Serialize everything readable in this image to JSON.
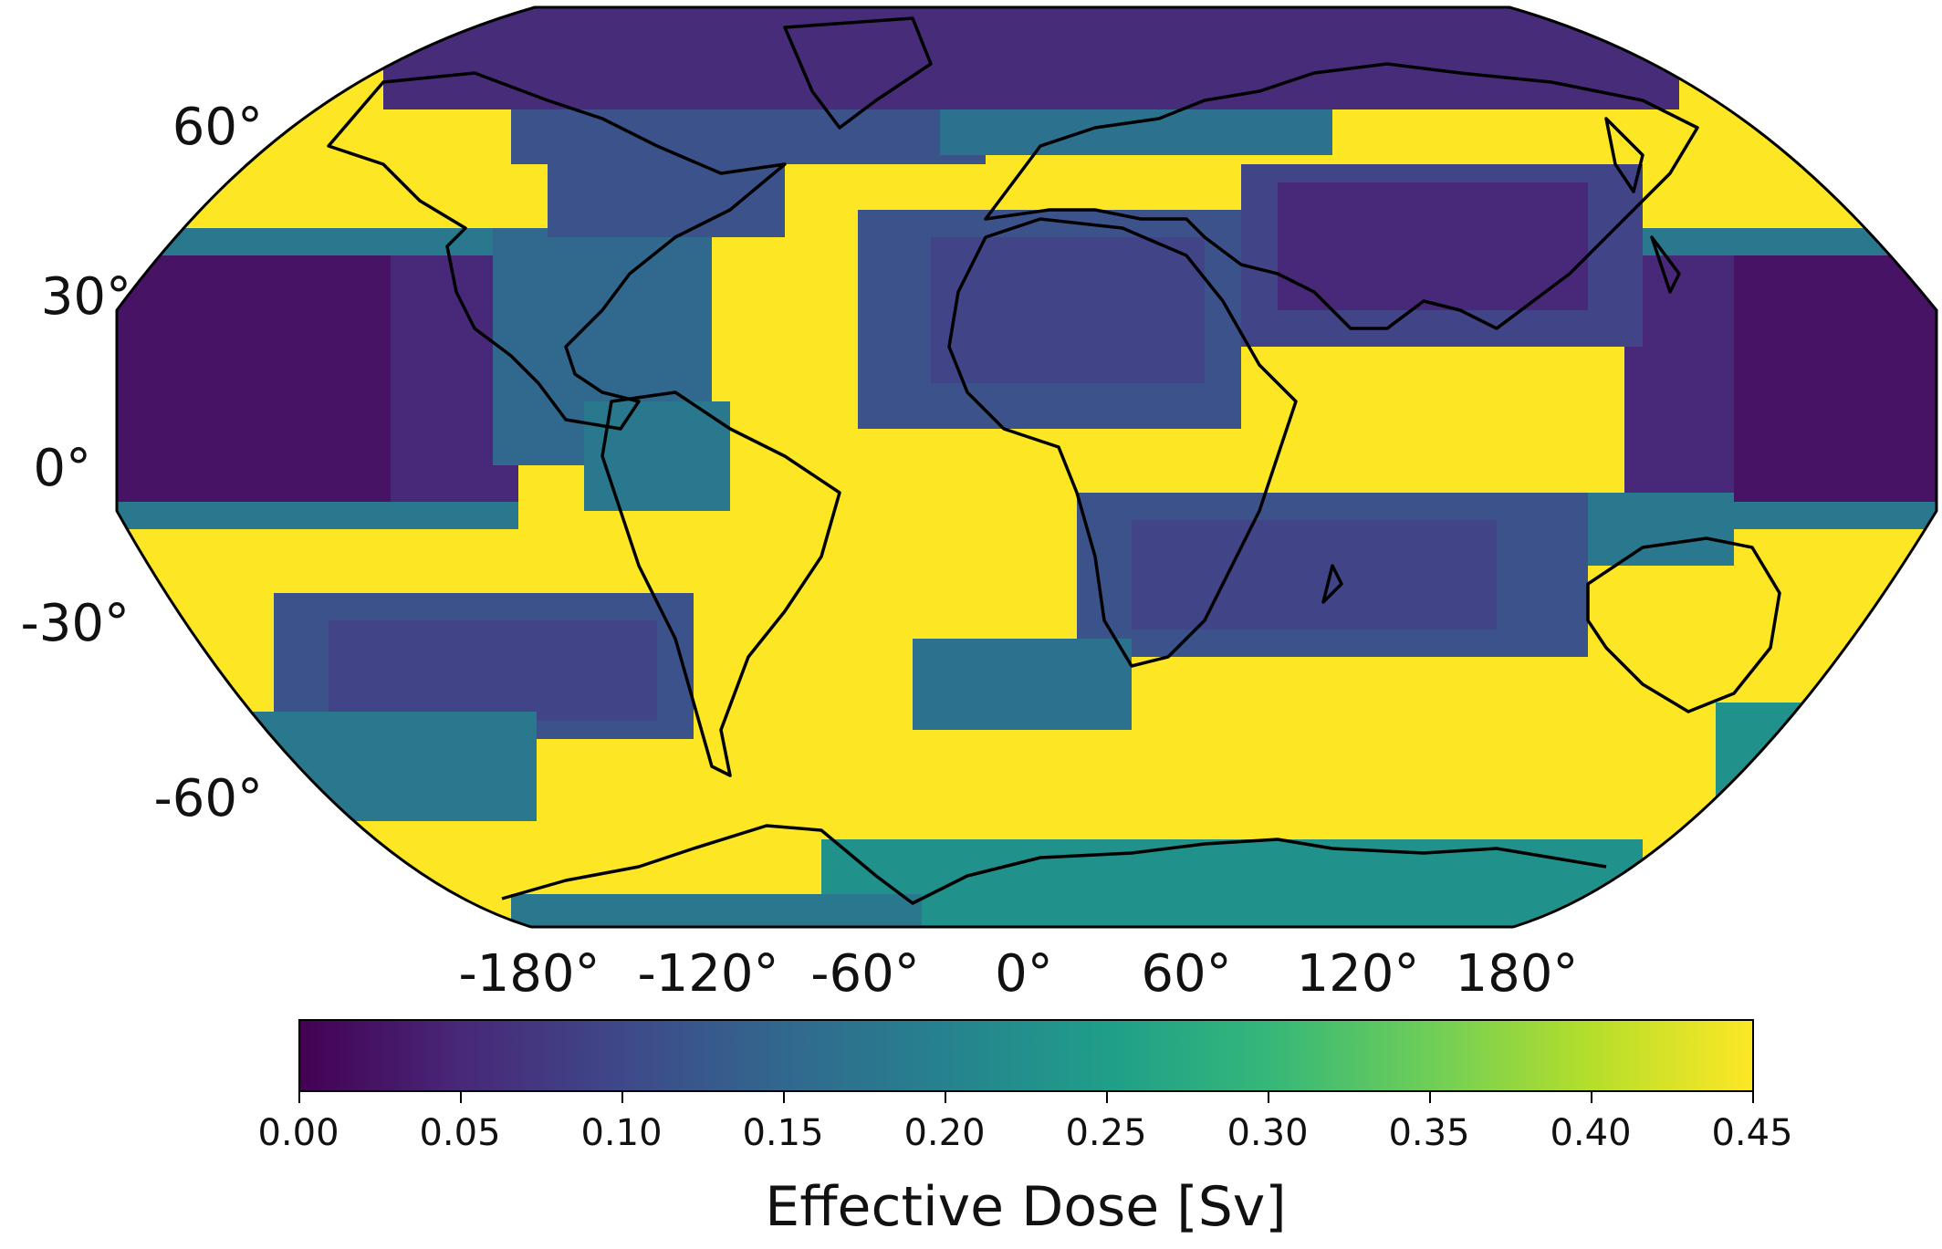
{
  "map": {
    "projection": "Robinson",
    "field": "effective dose",
    "coastlines": true
  },
  "lat_labels": [
    "60°",
    "30°",
    "0°",
    "-30°",
    "-60°"
  ],
  "lon_labels": [
    "-180°",
    "-120°",
    "-60°",
    "0°",
    "60°",
    "120°",
    "180°"
  ],
  "colorbar": {
    "colormap": "viridis",
    "range": [
      0.0,
      0.45
    ],
    "tick_labels": [
      "0.00",
      "0.05",
      "0.10",
      "0.15",
      "0.20",
      "0.25",
      "0.30",
      "0.35",
      "0.40",
      "0.45"
    ],
    "title": "Effective Dose [Sv]",
    "colors": [
      "#440154",
      "#482878",
      "#3e4989",
      "#31688e",
      "#26828e",
      "#1f9e89",
      "#35b779",
      "#6ece58",
      "#b5de2b",
      "#fde725"
    ]
  }
}
